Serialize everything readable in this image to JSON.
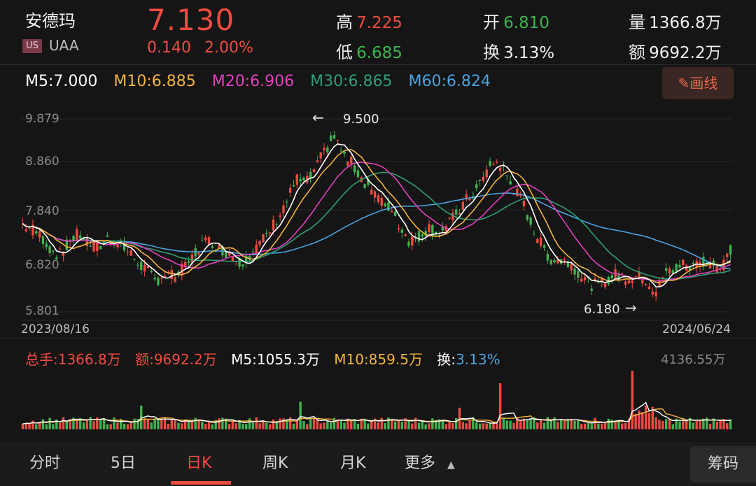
{
  "header": {
    "name": "安德玛",
    "market_badge": "US",
    "ticker": "UAA",
    "price": "7.130",
    "change": "0.140",
    "change_pct": "2.00%",
    "high_label": "高",
    "high_value": "7.225",
    "low_label": "低",
    "low_value": "6.685",
    "open_label": "开",
    "open_value": "6.810",
    "turnover_label": "换",
    "turnover_value": "3.13%",
    "volume_label": "量",
    "volume_value": "1366.8万",
    "amount_label": "额",
    "amount_value": "9692.2万"
  },
  "ma_legend": {
    "m5": "M5:7.000",
    "m10": "M10:6.885",
    "m20": "M20:6.906",
    "m30": "M30:6.865",
    "m60": "M60:6.824"
  },
  "draw_button": "画线",
  "price_axis": [
    "9.879",
    "8.860",
    "7.840",
    "6.820",
    "5.801"
  ],
  "annotations": {
    "high": "9.500",
    "low": "6.180",
    "high_arrow": "←",
    "low_arrow": "→"
  },
  "dates": {
    "start": "2023/08/16",
    "end": "2024/06/24"
  },
  "volume_legend": {
    "total": "总手:1366.8万",
    "amount": "额:9692.2万",
    "m5": "M5:1055.3万",
    "m10": "M10:859.5万",
    "turnover_label": "换:",
    "turnover_value": "3.13%",
    "max": "4136.55万"
  },
  "tabs": [
    "分时",
    "5日",
    "日K",
    "周K",
    "月K",
    "更多"
  ],
  "active_tab": "日K",
  "chip_label": "筹码",
  "colors": {
    "up": "#f04b40",
    "down": "#3fb34f",
    "m5": "#ffffff",
    "m10": "#f3b33d",
    "m20": "#e23fbf",
    "m30": "#2e9e72",
    "m60": "#4aa3e0",
    "bg": "#151515"
  },
  "chart_data": {
    "type": "candlestick",
    "y_range": [
      5.801,
      9.879
    ],
    "x_range": [
      "2023/08/16",
      "2024/06/24"
    ],
    "close_path": [
      7.65,
      7.55,
      7.4,
      7.1,
      7.0,
      7.3,
      7.45,
      7.25,
      7.15,
      7.35,
      7.3,
      7.1,
      6.9,
      6.7,
      6.45,
      6.6,
      6.55,
      6.7,
      6.95,
      7.25,
      7.3,
      7.1,
      7.05,
      6.85,
      7.0,
      7.2,
      7.45,
      7.8,
      8.15,
      8.6,
      8.5,
      8.8,
      9.2,
      9.5,
      9.1,
      8.9,
      8.6,
      8.4,
      8.1,
      8.0,
      7.6,
      7.3,
      7.4,
      7.6,
      7.45,
      7.6,
      7.9,
      8.15,
      8.35,
      8.7,
      9.0,
      8.8,
      8.4,
      8.1,
      7.6,
      7.2,
      6.9,
      6.9,
      6.85,
      6.6,
      6.4,
      6.35,
      6.5,
      6.6,
      6.5,
      6.55,
      6.5,
      6.2,
      6.6,
      6.7,
      6.8,
      6.75,
      6.9,
      6.85,
      6.7,
      7.13
    ],
    "ma": {
      "M5": 7.0,
      "M10": 6.885,
      "M20": 6.906,
      "M30": 6.865,
      "M60": 6.824
    },
    "annotated_high": 9.5,
    "annotated_low": 6.18,
    "volume_max": "4136.55万"
  }
}
